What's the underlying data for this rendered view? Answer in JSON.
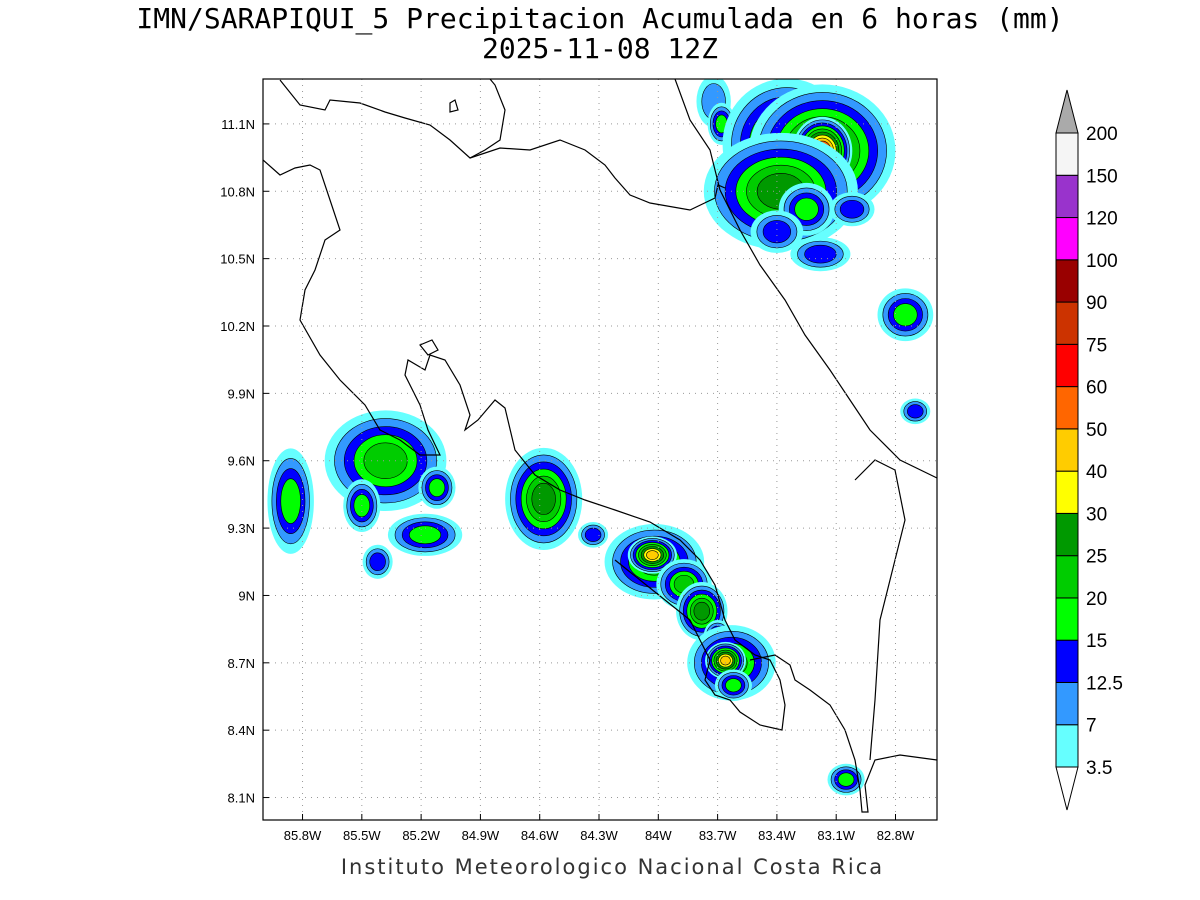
{
  "title": "IMN/SARAPIQUI_5 Precipitacion Acumulada en 6 horas (mm)",
  "subtitle": "2025-11-08 12Z",
  "footer": "Instituto Meteorologico Nacional Costa Rica",
  "lon_ticks": [
    "85.8W",
    "85.5W",
    "85.2W",
    "84.9W",
    "84.6W",
    "84.3W",
    "84W",
    "83.7W",
    "83.4W",
    "83.1W",
    "82.8W"
  ],
  "lat_ticks": [
    "11.1N",
    "10.8N",
    "10.5N",
    "10.2N",
    "9.9N",
    "9.6N",
    "9.3N",
    "9N",
    "8.7N",
    "8.4N",
    "8.1N"
  ],
  "extent": {
    "lon_min": -86.0,
    "lon_max": -82.59,
    "lat_min": 8.0,
    "lat_max": 11.3
  },
  "colorbar": {
    "levels": [
      "3.5",
      "7",
      "12.5",
      "15",
      "20",
      "25",
      "30",
      "40",
      "50",
      "60",
      "75",
      "90",
      "100",
      "120",
      "150",
      "200"
    ],
    "colors": [
      "#ffffff",
      "#66ffff",
      "#3399ff",
      "#0000ff",
      "#00ff00",
      "#00cc00",
      "#009900",
      "#ffff00",
      "#ffcc00",
      "#ff6600",
      "#ff0000",
      "#cc3300",
      "#990000",
      "#ff00ff",
      "#9933cc",
      "#f5f5f5",
      "#aaaaaa"
    ]
  },
  "precip_cells": [
    {
      "lon": -83.72,
      "lat": 11.2,
      "rx": 0.06,
      "ry": 0.08,
      "level": 2
    },
    {
      "lon": -83.68,
      "lat": 11.1,
      "rx": 0.03,
      "ry": 0.04,
      "level": 4
    },
    {
      "lon": -83.35,
      "lat": 11.01,
      "rx": 0.1,
      "ry": 0.09,
      "level": 6
    },
    {
      "lon": -83.17,
      "lat": 10.98,
      "rx": 0.1,
      "ry": 0.08,
      "level": 7
    },
    {
      "lon": -83.17,
      "lat": 10.98,
      "rx": 0.03,
      "ry": 0.03,
      "level": 10
    },
    {
      "lon": -83.38,
      "lat": 10.8,
      "rx": 0.12,
      "ry": 0.08,
      "level": 6
    },
    {
      "lon": -83.25,
      "lat": 10.72,
      "rx": 0.06,
      "ry": 0.05,
      "level": 4
    },
    {
      "lon": -83.4,
      "lat": 10.62,
      "rx": 0.07,
      "ry": 0.05,
      "level": 3
    },
    {
      "lon": -83.02,
      "lat": 10.72,
      "rx": 0.06,
      "ry": 0.04,
      "level": 3
    },
    {
      "lon": -83.18,
      "lat": 10.52,
      "rx": 0.08,
      "ry": 0.04,
      "level": 3
    },
    {
      "lon": -82.75,
      "lat": 10.25,
      "rx": 0.06,
      "ry": 0.05,
      "level": 4
    },
    {
      "lon": -82.7,
      "lat": 9.82,
      "rx": 0.04,
      "ry": 0.03,
      "level": 3
    },
    {
      "lon": -85.86,
      "lat": 9.42,
      "rx": 0.05,
      "ry": 0.1,
      "level": 4
    },
    {
      "lon": -85.38,
      "lat": 9.6,
      "rx": 0.11,
      "ry": 0.08,
      "level": 5
    },
    {
      "lon": -85.5,
      "lat": 9.4,
      "rx": 0.04,
      "ry": 0.05,
      "level": 4
    },
    {
      "lon": -85.42,
      "lat": 9.15,
      "rx": 0.04,
      "ry": 0.04,
      "level": 3
    },
    {
      "lon": -85.18,
      "lat": 9.27,
      "rx": 0.08,
      "ry": 0.04,
      "level": 4
    },
    {
      "lon": -85.12,
      "lat": 9.48,
      "rx": 0.04,
      "ry": 0.04,
      "level": 4
    },
    {
      "lon": -84.58,
      "lat": 9.43,
      "rx": 0.06,
      "ry": 0.07,
      "level": 6
    },
    {
      "lon": -84.33,
      "lat": 9.27,
      "rx": 0.04,
      "ry": 0.03,
      "level": 3
    },
    {
      "lon": -84.02,
      "lat": 9.15,
      "rx": 0.09,
      "ry": 0.06,
      "level": 5
    },
    {
      "lon": -84.03,
      "lat": 9.18,
      "rx": 0.03,
      "ry": 0.02,
      "level": 8
    },
    {
      "lon": -83.87,
      "lat": 9.05,
      "rx": 0.05,
      "ry": 0.04,
      "level": 5
    },
    {
      "lon": -83.78,
      "lat": 8.93,
      "rx": 0.04,
      "ry": 0.04,
      "level": 6
    },
    {
      "lon": -83.7,
      "lat": 8.82,
      "rx": 0.03,
      "ry": 0.03,
      "level": 4
    },
    {
      "lon": -83.63,
      "lat": 8.7,
      "rx": 0.08,
      "ry": 0.06,
      "level": 5
    },
    {
      "lon": -83.66,
      "lat": 8.71,
      "rx": 0.025,
      "ry": 0.02,
      "level": 8
    },
    {
      "lon": -83.62,
      "lat": 8.6,
      "rx": 0.04,
      "ry": 0.03,
      "level": 4
    },
    {
      "lon": -83.05,
      "lat": 8.18,
      "rx": 0.04,
      "ry": 0.03,
      "level": 4
    }
  ]
}
